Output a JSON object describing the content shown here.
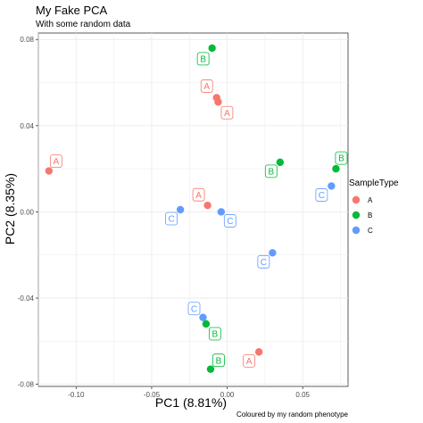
{
  "chart_data": {
    "type": "scatter",
    "title": "My Fake PCA",
    "subtitle": "With some random data",
    "xlabel": "PC1 (8.81%)",
    "ylabel": "PC2 (8.35%)",
    "caption": "Coloured by my random phenotype",
    "xlim": [
      -0.125,
      0.08
    ],
    "ylim": [
      -0.081,
      0.083
    ],
    "xticks": [
      -0.1,
      -0.05,
      0.0,
      0.05
    ],
    "xtick_labels": [
      "-0.10",
      "-0.05",
      "0.00",
      "0.05"
    ],
    "yticks": [
      -0.08,
      -0.04,
      0.0,
      0.04,
      0.08
    ],
    "ytick_labels": [
      "-0.08",
      "-0.04",
      "0.00",
      "0.04",
      "0.08"
    ],
    "grid": true,
    "legend": {
      "title": "SampleType",
      "position": "right",
      "entries": [
        {
          "label": "A",
          "color": "#F8766D"
        },
        {
          "label": "B",
          "color": "#00BA38"
        },
        {
          "label": "C",
          "color": "#619CFF"
        }
      ]
    },
    "series": [
      {
        "name": "A",
        "color": "#F8766D",
        "points": [
          {
            "x": -0.118,
            "y": 0.019
          },
          {
            "x": -0.007,
            "y": 0.053
          },
          {
            "x": -0.006,
            "y": 0.051
          },
          {
            "x": -0.013,
            "y": 0.003
          },
          {
            "x": 0.021,
            "y": -0.065
          }
        ]
      },
      {
        "name": "B",
        "color": "#00BA38",
        "points": [
          {
            "x": -0.01,
            "y": 0.076
          },
          {
            "x": 0.035,
            "y": 0.023
          },
          {
            "x": 0.072,
            "y": 0.02
          },
          {
            "x": -0.014,
            "y": -0.052
          },
          {
            "x": -0.011,
            "y": -0.073
          }
        ]
      },
      {
        "name": "C",
        "color": "#619CFF",
        "points": [
          {
            "x": -0.031,
            "y": 0.001
          },
          {
            "x": -0.004,
            "y": 0.0
          },
          {
            "x": 0.03,
            "y": -0.019
          },
          {
            "x": 0.069,
            "y": 0.012
          },
          {
            "x": -0.016,
            "y": -0.049
          }
        ]
      }
    ]
  }
}
